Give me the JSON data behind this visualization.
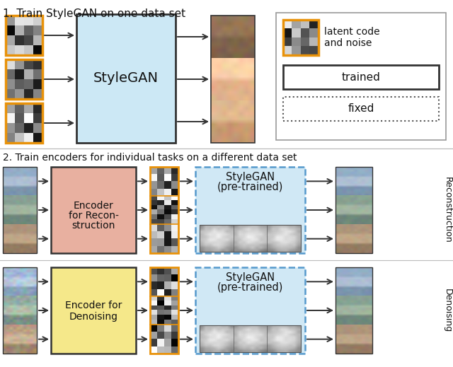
{
  "title1": "1. Train StyleGAN on one data set",
  "title2": "2. Train encoders for individual tasks on a different data set",
  "bg_color": "#ffffff",
  "stylegan_box_color": "#cce8f5",
  "stylegan_box_edge": "#333333",
  "encoder_recon_color": "#e8b0a0",
  "encoder_denoise_color": "#f5e88a",
  "pretrained_fill": "#d0e8f5",
  "pretrained_edge": "#5599cc",
  "legend_border": "#999999",
  "legend_latent_border": "#e8920a",
  "trained_box_edge": "#333333",
  "fixed_box_edge": "#555555",
  "arrow_color": "#333333",
  "text_color": "#111111",
  "label_recon": "Reconstruction",
  "label_denoise": "Denoising",
  "fig_w": 6.4,
  "fig_h": 5.19,
  "dpi": 100
}
